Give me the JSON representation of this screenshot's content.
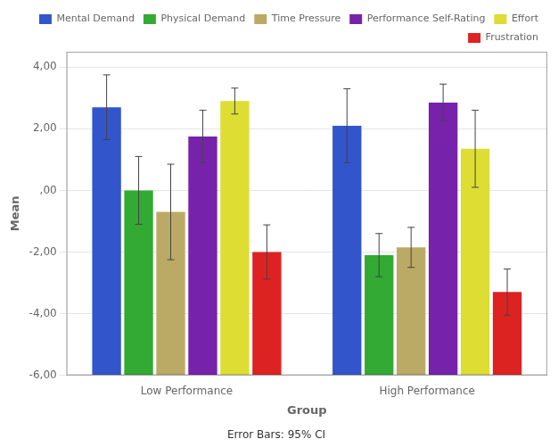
{
  "chart_data": {
    "type": "bar",
    "xlabel": "Group",
    "ylabel": "Mean",
    "categories": [
      "Low Performance",
      "High Performance"
    ],
    "series": [
      {
        "name": "Mental Demand",
        "color": "#3355CC",
        "values": [
          2.7,
          2.1
        ],
        "errors": [
          1.05,
          1.2
        ]
      },
      {
        "name": "Physical Demand",
        "color": "#33AA33",
        "values": [
          0.0,
          -2.1
        ],
        "errors": [
          1.1,
          0.7
        ]
      },
      {
        "name": "Time Pressure",
        "color": "#BBAA66",
        "values": [
          -0.7,
          -1.85
        ],
        "errors": [
          1.55,
          0.65
        ]
      },
      {
        "name": "Performance Self-Rating",
        "color": "#7722AA",
        "values": [
          1.75,
          2.85
        ],
        "errors": [
          0.85,
          0.6
        ]
      },
      {
        "name": "Effort",
        "color": "#DDDD33",
        "values": [
          2.9,
          1.35
        ],
        "errors": [
          0.42,
          1.25
        ]
      },
      {
        "name": "Frustration",
        "color": "#DD2222",
        "values": [
          -2.0,
          -3.3
        ],
        "errors": [
          0.88,
          0.75
        ]
      }
    ],
    "ylim": [
      -6.0,
      4.5
    ],
    "yticks": [
      {
        "value": -6.0,
        "label": "-6,00"
      },
      {
        "value": -4.0,
        "label": "-4,00"
      },
      {
        "value": -2.0,
        "label": "-2,00"
      },
      {
        "value": 0.0,
        "label": ",00"
      },
      {
        "value": 2.0,
        "label": "2,00"
      },
      {
        "value": 4.0,
        "label": "4,00"
      }
    ],
    "grid": true,
    "legend": "upper right",
    "annotations": [
      "Error Bars: 95% CI"
    ]
  }
}
